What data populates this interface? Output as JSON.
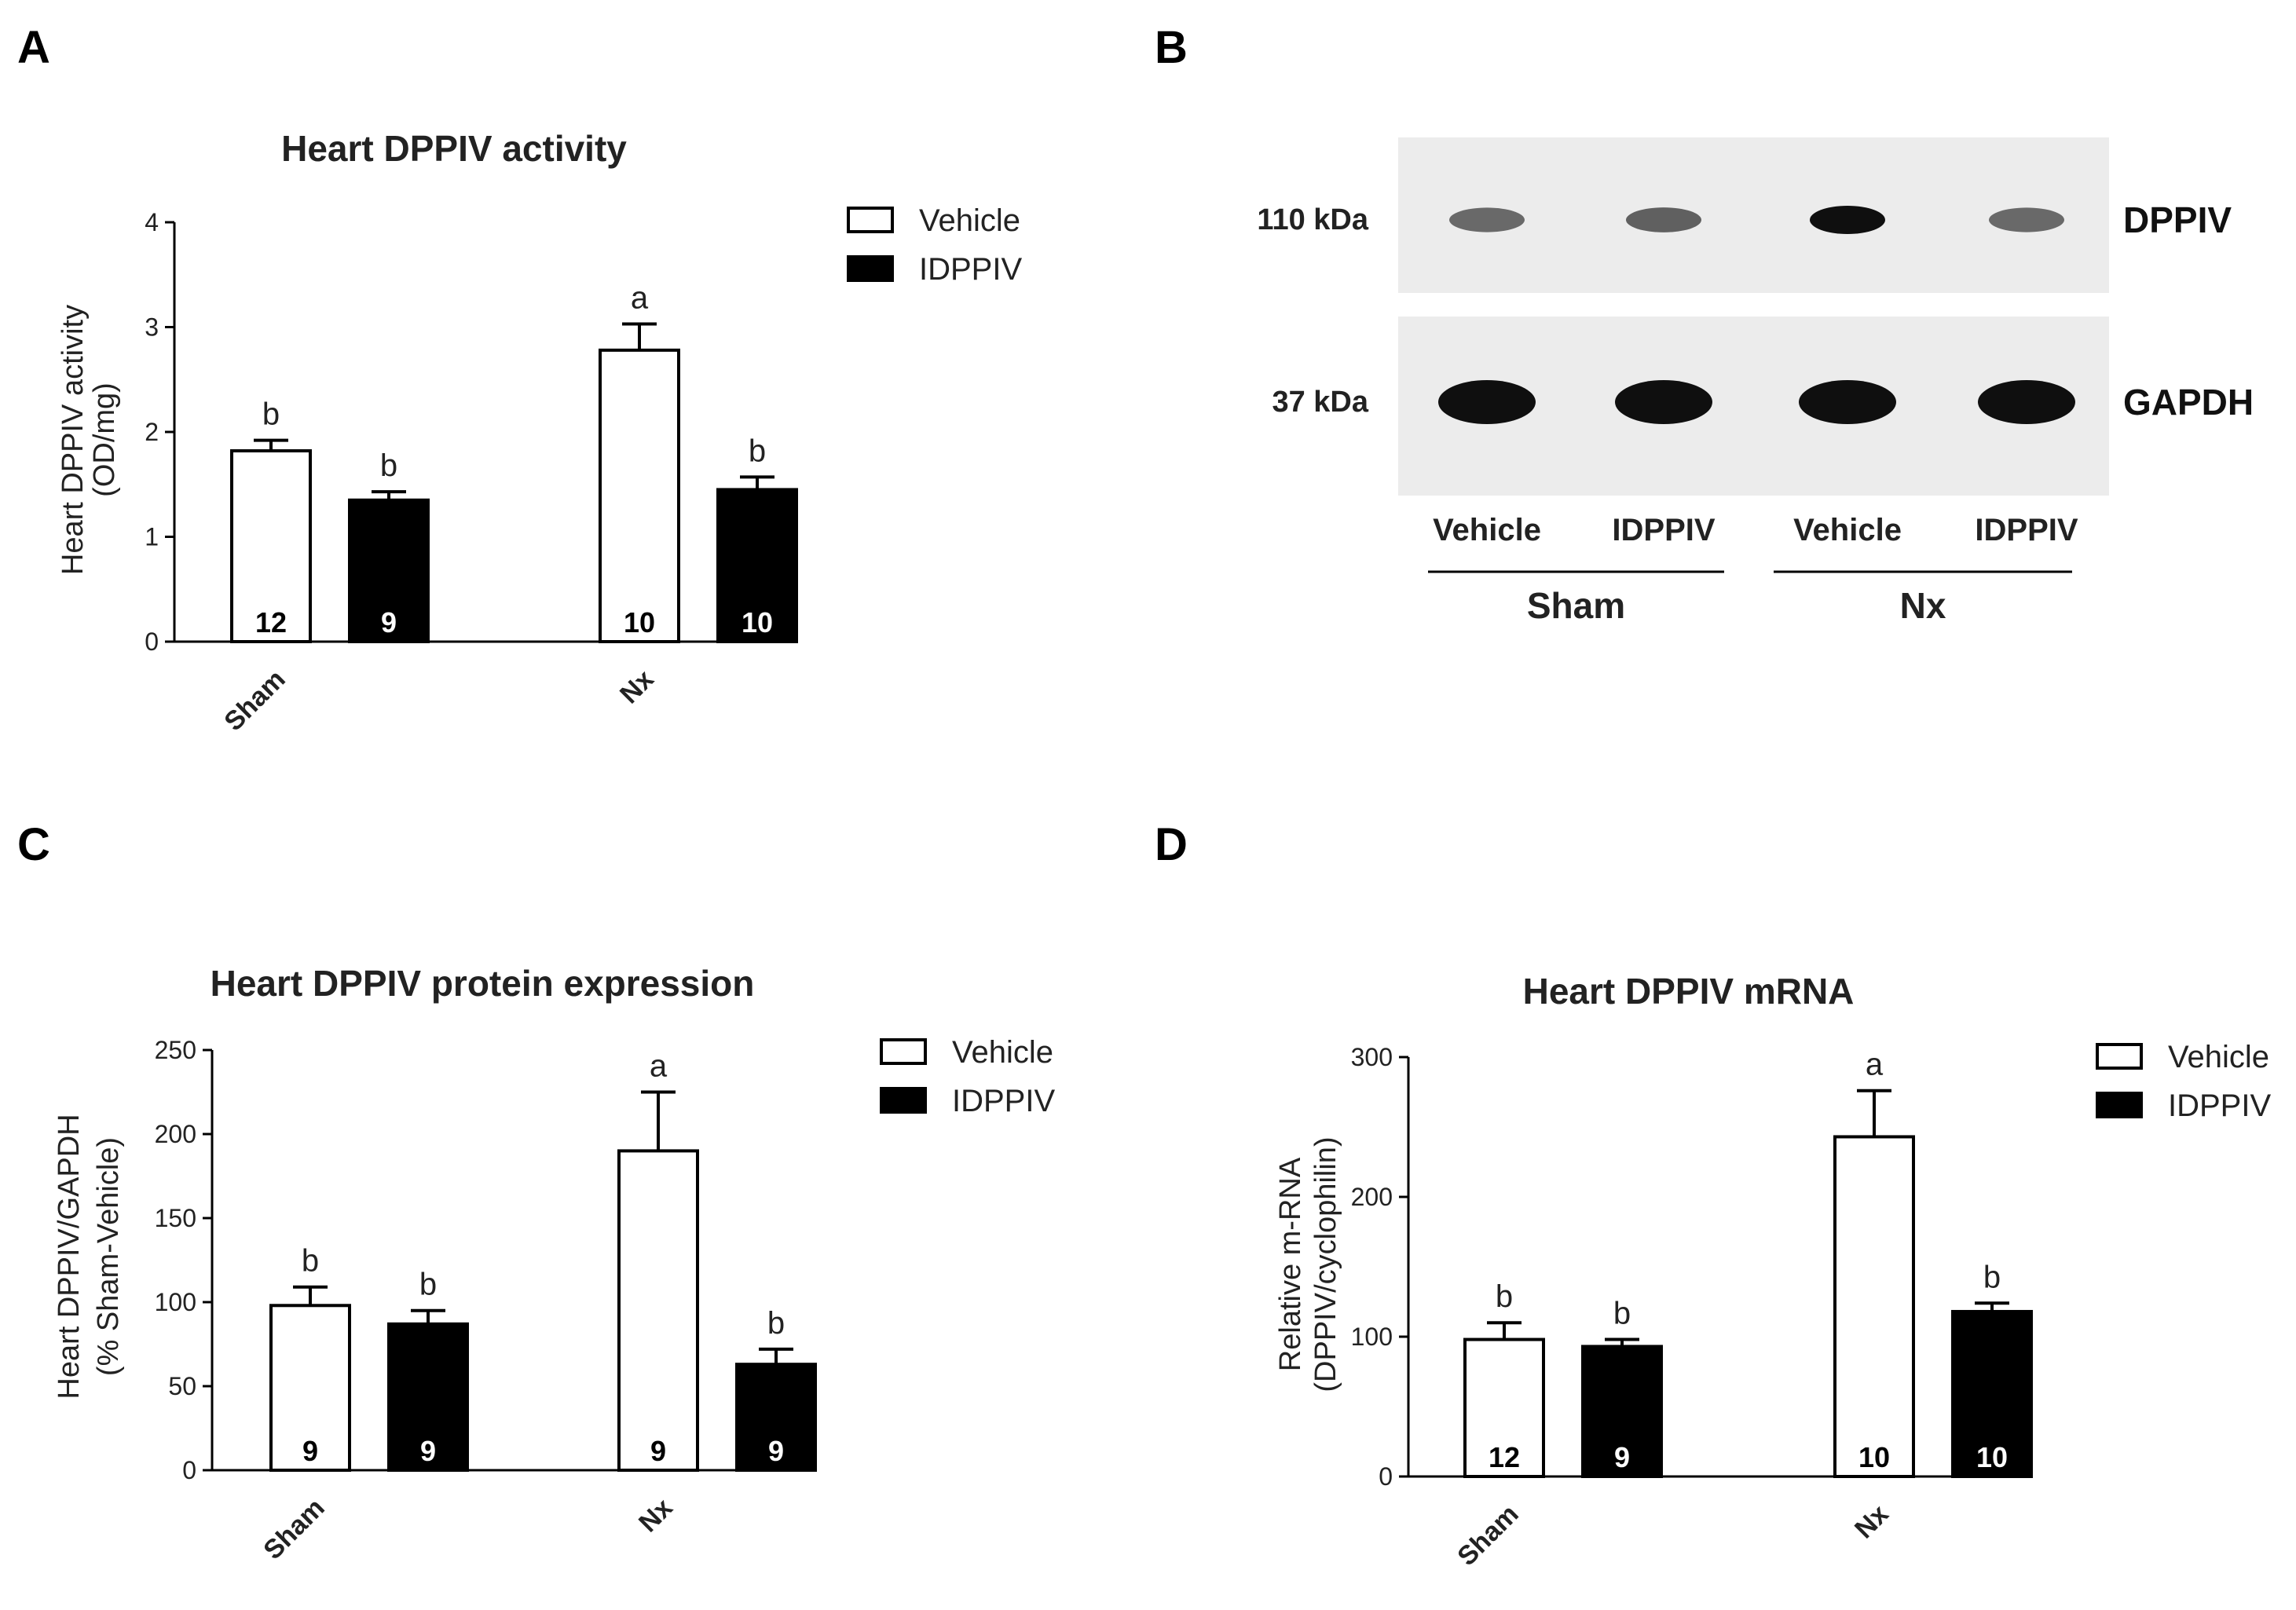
{
  "panel_labels": {
    "a": "A",
    "b": "B",
    "c": "C",
    "d": "D"
  },
  "chart_data": [
    {
      "panel": "A",
      "type": "bar",
      "title": "Heart DPPIV activity",
      "ylabel": [
        "Heart DPPIV activity",
        "(OD/mg)"
      ],
      "xlabel": "",
      "categories": [
        "Sham",
        "Nx"
      ],
      "ylim": [
        0,
        4
      ],
      "yticks": [
        "0",
        "1",
        "2",
        "3",
        "4"
      ],
      "grid": false,
      "legend_position": "top-right",
      "series": [
        {
          "name": "Vehicle",
          "fill": "#ffffff",
          "values": [
            1.82,
            2.78
          ],
          "errors": [
            0.1,
            0.25
          ],
          "letters": [
            "b",
            "a"
          ],
          "n": [
            "12",
            "10"
          ]
        },
        {
          "name": "IDPPIV",
          "fill": "#000000",
          "values": [
            1.35,
            1.45
          ],
          "errors": [
            0.08,
            0.12
          ],
          "letters": [
            "b",
            "b"
          ],
          "n": [
            "9",
            "10"
          ]
        }
      ]
    },
    {
      "panel": "C",
      "type": "bar",
      "title": "Heart DPPIV protein expression",
      "ylabel": [
        "Heart DPPIV/GAPDH",
        "(% Sham-Vehicle)"
      ],
      "xlabel": "",
      "categories": [
        "Sham",
        "Nx"
      ],
      "ylim": [
        0,
        250
      ],
      "yticks": [
        "0",
        "50",
        "100",
        "150",
        "200",
        "250"
      ],
      "grid": false,
      "legend_position": "top-right",
      "series": [
        {
          "name": "Vehicle",
          "fill": "#ffffff",
          "values": [
            98,
            190
          ],
          "errors": [
            11,
            35
          ],
          "letters": [
            "b",
            "a"
          ],
          "n": [
            "9",
            "9"
          ]
        },
        {
          "name": "IDPPIV",
          "fill": "#000000",
          "values": [
            87,
            63
          ],
          "errors": [
            8,
            9
          ],
          "letters": [
            "b",
            "b"
          ],
          "n": [
            "9",
            "9"
          ]
        }
      ]
    },
    {
      "panel": "D",
      "type": "bar",
      "title": "Heart DPPIV mRNA",
      "ylabel": [
        "Relative m-RNA",
        "(DPPIV/cyclophilin)"
      ],
      "xlabel": "",
      "categories": [
        "Sham",
        "Nx"
      ],
      "ylim": [
        0,
        300
      ],
      "yticks": [
        "0",
        "100",
        "200",
        "300"
      ],
      "grid": false,
      "legend_position": "top-right",
      "series": [
        {
          "name": "Vehicle",
          "fill": "#ffffff",
          "values": [
            98,
            243
          ],
          "errors": [
            12,
            33
          ],
          "letters": [
            "b",
            "a"
          ],
          "n": [
            "12",
            "10"
          ]
        },
        {
          "name": "IDPPIV",
          "fill": "#000000",
          "values": [
            93,
            118
          ],
          "errors": [
            5,
            6
          ],
          "letters": [
            "b",
            "b"
          ],
          "n": [
            "9",
            "10"
          ]
        }
      ]
    }
  ],
  "western_blot": {
    "panel": "B",
    "blots": [
      {
        "protein": "DPPIV",
        "marker": "110 kDa",
        "band_intensity": [
          0.55,
          0.6,
          1.0,
          0.55
        ]
      },
      {
        "protein": "GAPDH",
        "marker": "37 kDa",
        "band_intensity": [
          1.0,
          1.0,
          1.0,
          1.0
        ]
      }
    ],
    "lanes": [
      "Vehicle",
      "IDPPIV",
      "Vehicle",
      "IDPPIV"
    ],
    "groups": [
      "Sham",
      "Nx"
    ]
  }
}
